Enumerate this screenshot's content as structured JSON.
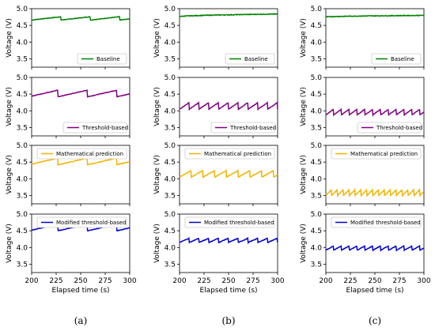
{
  "chart_data": {
    "type": "line",
    "columns": [
      "(a)",
      "(b)",
      "(c)"
    ],
    "xlabel": "Elapsed time (s)",
    "ylabel": "Voltage (V)",
    "xlim": [
      200,
      300
    ],
    "ylim": [
      3.25,
      5.0
    ],
    "xticks": [
      "200",
      "225",
      "250",
      "275",
      "300"
    ],
    "yticks": [
      "3.5",
      "4.0",
      "4.5",
      "5.0"
    ],
    "rows": [
      {
        "legend": "Baseline",
        "color": "#008000"
      },
      {
        "legend": "Threshold-based",
        "color": "#800080"
      },
      {
        "legend": "Mathematical prediction",
        "color": "#f0b400"
      },
      {
        "legend": "Modified threshold-based",
        "color": "#0000cd"
      }
    ],
    "panels": [
      [
        {
          "kind": "saw",
          "low": 4.66,
          "high": 4.76,
          "period": 30,
          "phase": 0
        },
        {
          "kind": "saw",
          "low": 4.42,
          "high": 4.62,
          "period": 30,
          "phase": 3
        },
        {
          "kind": "saw",
          "low": 4.42,
          "high": 4.62,
          "period": 30,
          "phase": 3
        },
        {
          "kind": "saw",
          "low": 4.5,
          "high": 4.7,
          "period": 30,
          "phase": 3
        }
      ],
      [
        {
          "kind": "flat",
          "start": 4.76,
          "end": 4.84,
          "noise": 0.02
        },
        {
          "kind": "saw",
          "low": 4.05,
          "high": 4.25,
          "period": 10,
          "phase": 0
        },
        {
          "kind": "saw",
          "low": 4.05,
          "high": 4.25,
          "period": 12,
          "phase": 0
        },
        {
          "kind": "saw",
          "low": 4.15,
          "high": 4.28,
          "period": 10,
          "phase": 0
        }
      ],
      [
        {
          "kind": "flat",
          "start": 4.75,
          "end": 4.8,
          "noise": 0.02
        },
        {
          "kind": "saw",
          "low": 3.88,
          "high": 4.05,
          "period": 8,
          "phase": 0
        },
        {
          "kind": "saw",
          "low": 3.5,
          "high": 3.68,
          "period": 6,
          "phase": 0
        },
        {
          "kind": "saw",
          "low": 3.92,
          "high": 4.05,
          "period": 8,
          "phase": 0
        }
      ]
    ],
    "legend_placement": [
      "lower-right",
      "lower-right",
      "upper-right",
      "upper-right"
    ]
  }
}
